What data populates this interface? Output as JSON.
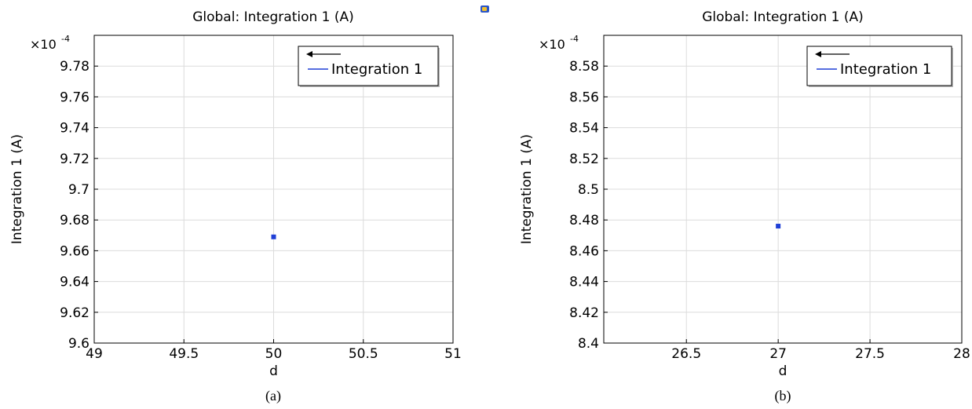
{
  "badge_icon": "small-app-icon",
  "chart_data": [
    {
      "type": "scatter",
      "title": "Global: Integration 1 (A)",
      "xlabel": "d",
      "ylabel": "Integration 1 (A)",
      "y_multiplier_base": "×10",
      "y_multiplier_exp": "-4",
      "xlim": [
        49,
        51
      ],
      "ylim": [
        9.6,
        9.8
      ],
      "xticks": [
        49,
        49.5,
        50,
        50.5,
        51
      ],
      "xtick_labels": [
        "49",
        "49.5",
        "50",
        "50.5",
        "51"
      ],
      "yticks": [
        9.6,
        9.62,
        9.64,
        9.66,
        9.68,
        9.7,
        9.72,
        9.74,
        9.76,
        9.78
      ],
      "ytick_labels": [
        "9.6",
        "9.62",
        "9.64",
        "9.66",
        "9.68",
        "9.7",
        "9.72",
        "9.74",
        "9.76",
        "9.78"
      ],
      "series": [
        {
          "name": "Integration 1",
          "x": [
            50
          ],
          "y": [
            9.669
          ],
          "color": "#1f3fd6"
        }
      ],
      "grid": true,
      "legend": "top-right",
      "caption": "(a)"
    },
    {
      "type": "scatter",
      "title": "Global: Integration 1 (A)",
      "xlabel": "d",
      "ylabel": "Integration 1 (A)",
      "y_multiplier_base": "×10",
      "y_multiplier_exp": "-4",
      "xlim": [
        26.05,
        28
      ],
      "ylim": [
        8.4,
        8.6
      ],
      "xticks": [
        26.5,
        27,
        27.5,
        28
      ],
      "xtick_labels": [
        "26.5",
        "27",
        "27.5",
        "28"
      ],
      "yticks": [
        8.4,
        8.42,
        8.44,
        8.46,
        8.48,
        8.5,
        8.52,
        8.54,
        8.56,
        8.58
      ],
      "ytick_labels": [
        "8.4",
        "8.42",
        "8.44",
        "8.46",
        "8.48",
        "8.5",
        "8.52",
        "8.54",
        "8.56",
        "8.58"
      ],
      "series": [
        {
          "name": "Integration 1",
          "x": [
            27
          ],
          "y": [
            8.476
          ],
          "color": "#1f3fd6"
        }
      ],
      "grid": true,
      "legend": "top-right",
      "caption": "(b)"
    }
  ]
}
